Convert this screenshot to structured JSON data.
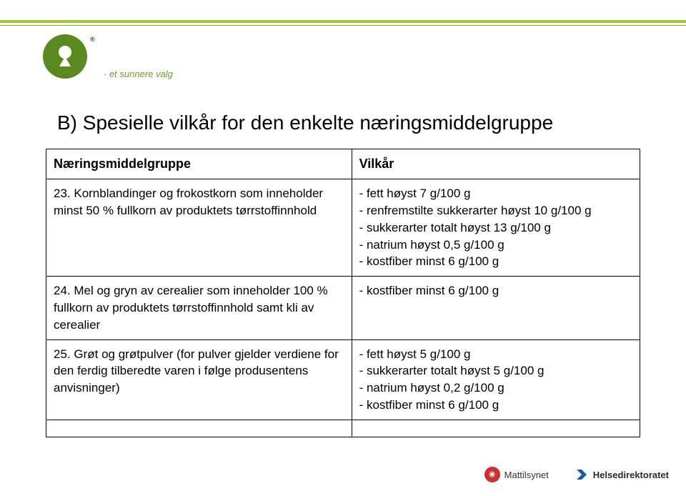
{
  "colors": {
    "green_thick": "#a0c838",
    "green_thin": "#7aa82d",
    "logo_bg": "#5a8a1f",
    "tagline_color": "#6b9e2e",
    "heading_color": "#000000",
    "table_border": "#000000",
    "text_color": "#000000",
    "mt_red": "#d12f2f",
    "hd_blue": "#1a5a9e"
  },
  "logo": {
    "reg": "®",
    "tagline": "·  et sunnere valg"
  },
  "heading": "B) Spesielle vilkår for den enkelte næringsmiddelgruppe",
  "table": {
    "header_left": "Næringsmiddelgruppe",
    "header_right": "Vilkår",
    "rows": [
      {
        "left": "23. Kornblandinger og frokostkorn som inneholder minst 50 % fullkorn av produktets tørrstoffinnhold",
        "right": "- fett høyst 7 g/100 g\n- renfremstilte sukkerarter høyst 10 g/100 g\n- sukkerarter totalt høyst 13 g/100 g\n- natrium høyst 0,5 g/100 g\n- kostfiber minst 6 g/100 g"
      },
      {
        "left": "24. Mel og gryn av cerealier som inneholder 100 % fullkorn av produktets tørrstoffinnhold samt kli av cerealier",
        "right": "- kostfiber minst 6 g/100 g"
      },
      {
        "left": "25. Grøt og grøtpulver (for pulver gjelder verdiene for den ferdig tilberedte varen i følge produsentens anvisninger)",
        "right": "- fett høyst 5 g/100 g\n- sukkerarter totalt høyst 5 g/100 g\n- natrium høyst 0,2 g/100 g\n- kostfiber minst 6 g/100 g"
      }
    ]
  },
  "footer": {
    "mattilsynet": "Mattilsynet",
    "helsedirektoratet": "Helsedirektoratet"
  }
}
